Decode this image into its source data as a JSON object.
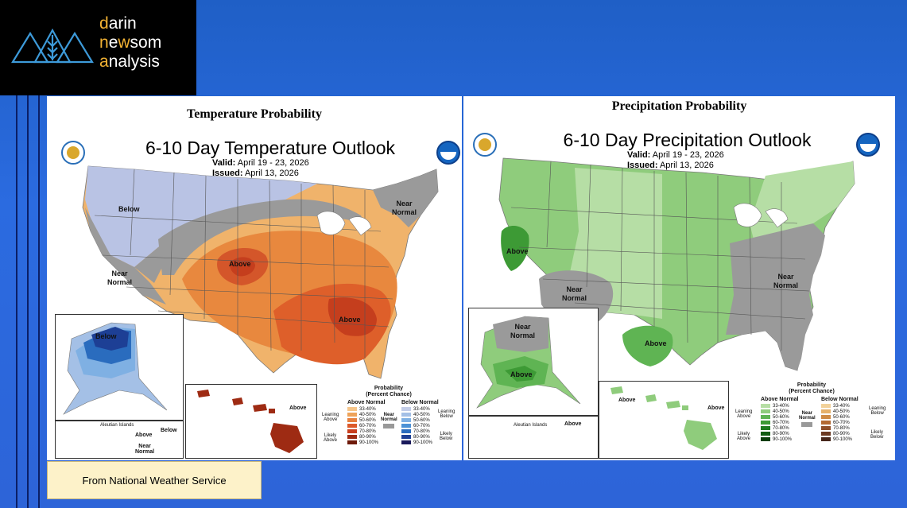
{
  "brand": {
    "line1_first": "d",
    "line1_rest": "arin",
    "line2_first": "n",
    "line2_mid": "e",
    "line2_w": "w",
    "line2_rest": "som",
    "line3_first": "a",
    "line3_rest": "nalysis",
    "accent_color": "#f2b233"
  },
  "temperature": {
    "panel_title": "Temperature Probability",
    "map_title": "6-10 Day Temperature Outlook",
    "valid_label": "Valid:",
    "valid_value": "April 19 - 23, 2026",
    "issued_label": "Issued:",
    "issued_value": "April 13, 2026",
    "regions": {
      "below": "Below",
      "above_plains": "Above",
      "above_southeast": "Above",
      "near_normal_west_1": "Near",
      "near_normal_west_2": "Normal",
      "near_normal_ne_1": "Near",
      "near_normal_ne_2": "Normal",
      "alaska_below": "Below",
      "hawaii_above": "Above",
      "aleutian": "Aleutian Islands",
      "aleutian_above": "Above",
      "aleutian_below": "Below",
      "aleutian_near_1": "Near",
      "aleutian_near_2": "Normal"
    },
    "legend": {
      "title_1": "Probability",
      "title_2": "(Percent Chance)",
      "above_header": "Above Normal",
      "below_header": "Below Normal",
      "leaning_above_1": "Leaning",
      "leaning_above_2": "Above",
      "likely_above_1": "Likely",
      "likely_above_2": "Above",
      "leaning_below_1": "Leaning",
      "leaning_below_2": "Below",
      "likely_below_1": "Likely",
      "likely_below_2": "Below",
      "near_normal_1": "Near",
      "near_normal_2": "Normal",
      "ranges": [
        "33-40%",
        "40-50%",
        "50-60%",
        "60-70%",
        "70-80%",
        "80-90%",
        "90-100%"
      ],
      "above_colors": [
        "#f5c58a",
        "#eea35a",
        "#e7803e",
        "#dc5a2a",
        "#c93f1f",
        "#9e2b13",
        "#6e1a0a"
      ],
      "below_colors": [
        "#c3cde8",
        "#a4c0e6",
        "#7fb0e3",
        "#4d92d6",
        "#2a6cbe",
        "#1d3f95",
        "#1a1a5c"
      ],
      "near_color": "#999999"
    }
  },
  "precipitation": {
    "panel_title": "Precipitation Probability",
    "map_title": "6-10 Day Precipitation Outlook",
    "valid_label": "Valid:",
    "valid_value": "April 19 - 23, 2026",
    "issued_label": "Issued:",
    "issued_value": "April 13, 2026",
    "regions": {
      "above_ca": "Above",
      "above_tx": "Above",
      "near_normal_sw_1": "Near",
      "near_normal_sw_2": "Normal",
      "near_normal_se_1": "Near",
      "near_normal_se_2": "Normal",
      "alaska_near_1": "Near",
      "alaska_near_2": "Normal",
      "alaska_above": "Above",
      "hawaii_above_1": "Above",
      "hawaii_above_2": "Above",
      "aleutian": "Aleutian Islands",
      "aleutian_above": "Above"
    },
    "legend": {
      "title_1": "Probability",
      "title_2": "(Percent Chance)",
      "above_header": "Above Normal",
      "below_header": "Below Normal",
      "leaning_above_1": "Leaning",
      "leaning_above_2": "Above",
      "likely_above_1": "Likely",
      "likely_above_2": "Above",
      "leaning_below_1": "Leaning",
      "leaning_below_2": "Below",
      "likely_below_1": "Likely",
      "likely_below_2": "Below",
      "near_normal_1": "Near",
      "near_normal_2": "Normal",
      "ranges": [
        "33-40%",
        "40-50%",
        "50-60%",
        "60-70%",
        "70-80%",
        "80-90%",
        "90-100%"
      ],
      "above_colors": [
        "#b6dea5",
        "#8fcc7c",
        "#5fb453",
        "#3d9a35",
        "#1f7a1f",
        "#125c12",
        "#0a3d0a"
      ],
      "below_colors": [
        "#f2d29b",
        "#e6b26b",
        "#cf8c46",
        "#b36a33",
        "#8f4f2a",
        "#6b3a22",
        "#45261a"
      ],
      "near_color": "#999999"
    }
  },
  "caption": "From National Weather Service"
}
